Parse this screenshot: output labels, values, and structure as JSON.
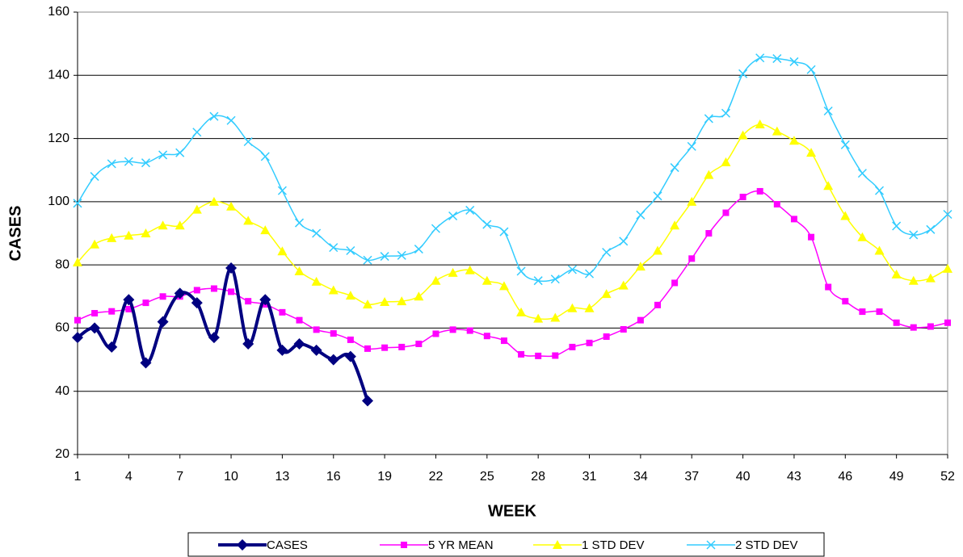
{
  "chart_data": {
    "type": "line",
    "x_label": "WEEK",
    "y_label": "CASES",
    "x": [
      1,
      2,
      3,
      4,
      5,
      6,
      7,
      8,
      9,
      10,
      11,
      12,
      13,
      14,
      15,
      16,
      17,
      18,
      19,
      20,
      21,
      22,
      23,
      24,
      25,
      26,
      27,
      28,
      29,
      30,
      31,
      32,
      33,
      34,
      35,
      36,
      37,
      38,
      39,
      40,
      41,
      42,
      43,
      44,
      45,
      46,
      47,
      48,
      49,
      50,
      51,
      52
    ],
    "xlim": [
      1,
      52
    ],
    "xticks": [
      1,
      4,
      7,
      10,
      13,
      16,
      19,
      22,
      25,
      28,
      31,
      34,
      37,
      40,
      43,
      46,
      49,
      52
    ],
    "ylim": [
      20,
      160
    ],
    "yticks": [
      20,
      40,
      60,
      80,
      100,
      120,
      140,
      160
    ],
    "grid": true,
    "series": [
      {
        "name": "CASES",
        "color": "#000080",
        "marker": "diamond",
        "values": [
          57,
          60,
          54,
          69,
          49,
          62,
          71,
          68,
          57,
          79,
          55,
          69,
          53,
          55,
          53,
          50,
          51,
          37,
          null,
          null,
          null,
          null,
          null,
          null,
          null,
          null,
          null,
          null,
          null,
          null,
          null,
          null,
          null,
          null,
          null,
          null,
          null,
          null,
          null,
          null,
          null,
          null,
          null,
          null,
          null,
          null,
          null,
          null,
          null,
          null,
          null,
          null
        ]
      },
      {
        "name": "5 YR MEAN",
        "color": "#ff00ff",
        "marker": "square",
        "values": [
          62.5,
          64.7,
          65.3,
          66,
          68,
          70,
          70,
          72,
          72.5,
          71.5,
          68.5,
          67.5,
          65,
          62.5,
          59.5,
          58.3,
          56.3,
          53.5,
          53.8,
          54,
          55,
          58.2,
          59.5,
          59.2,
          57.5,
          56,
          51.7,
          51.2,
          51.3,
          54,
          55.3,
          57.3,
          59.6,
          62.5,
          67.3,
          74.3,
          82,
          90,
          96.5,
          101.5,
          103.3,
          99.2,
          94.5,
          88.8,
          73,
          68.5,
          65.2,
          65.2,
          61.7,
          60.2,
          60.5,
          61.7
        ]
      },
      {
        "name": "1 STD DEV",
        "color": "#ffff00",
        "marker": "triangle",
        "values": [
          80.8,
          86.5,
          88.5,
          89.3,
          90,
          92.5,
          92.5,
          97.5,
          100,
          98.5,
          94,
          91,
          84.3,
          78,
          74.7,
          72,
          70.3,
          67.5,
          68.3,
          68.5,
          70,
          75,
          77.5,
          78.3,
          75,
          73.3,
          65,
          63,
          63.3,
          66.3,
          66.3,
          70.8,
          73.5,
          79.5,
          84.5,
          92.5,
          100,
          108.5,
          112.5,
          121,
          124.5,
          122.3,
          119.3,
          115.5,
          105,
          95.5,
          88.8,
          84.5,
          77,
          75,
          75.8,
          78.8
        ]
      },
      {
        "name": "2 STD DEV",
        "color": "#33ccff",
        "marker": "x",
        "values": [
          99.5,
          108,
          112,
          112.7,
          112.3,
          114.8,
          115.5,
          122,
          127,
          125.7,
          119,
          114.3,
          103.5,
          93.3,
          90,
          85.5,
          84.5,
          81.5,
          82.7,
          83,
          85,
          91.5,
          95.5,
          97.3,
          92.8,
          90.5,
          78,
          75,
          75.5,
          78.5,
          77.2,
          84,
          87.5,
          95.8,
          101.8,
          110.8,
          117.5,
          126.3,
          128,
          140.5,
          145.5,
          145.3,
          144.3,
          141.8,
          128.7,
          118,
          109,
          103.5,
          92.3,
          89.5,
          91.2,
          96
        ]
      }
    ]
  }
}
